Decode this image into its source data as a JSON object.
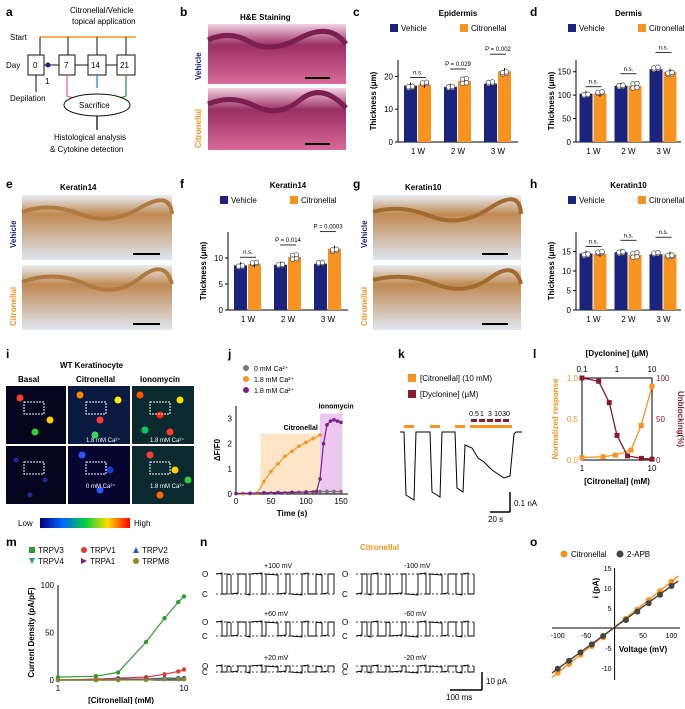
{
  "colors": {
    "vehicle": "#1a237e",
    "citronellal": "#f7931e",
    "wine": "#8b1a2b",
    "green": "#2e9e33",
    "red": "#e53935",
    "blue": "#1e63d6",
    "teal": "#1f9e9e",
    "purple": "#7b1f8a",
    "olive": "#8c8c1a",
    "gray": "#777777"
  },
  "labels": {
    "a": "a",
    "b": "b",
    "c": "c",
    "d": "d",
    "e": "e",
    "f": "f",
    "g": "g",
    "h": "h",
    "i": "i",
    "j": "j",
    "k": "k",
    "l": "l",
    "m": "m",
    "n": "n",
    "o": "o"
  },
  "panel_a": {
    "treatment": "Citronellal/Vehicle",
    "treatment2": "topical application",
    "start": "Start",
    "day": "Day",
    "d0": "0",
    "d1": "1",
    "d7": "7",
    "d14": "14",
    "d21": "21",
    "depilation": "Depilation",
    "sacrifice": "Sacrifice",
    "analysis1": "Histological analysis",
    "analysis2": "& Cytokine detection"
  },
  "panel_b": {
    "title": "H&E Staining",
    "row1": "Vehicle",
    "row2": "Citronellal"
  },
  "panel_e": {
    "title": "Keratin14",
    "row1": "Vehicle",
    "row2": "Citronellal"
  },
  "panel_g": {
    "title": "Keratin10",
    "row1": "Vehicle",
    "row2": "Citronellal"
  },
  "legend_vc": {
    "vehicle": "Vehicle",
    "citronellal": "Citronellal"
  },
  "panel_i": {
    "title": "WT Keratinocyte",
    "col1": "Basal",
    "col2": "Citronellal",
    "col3": "Ionomycin",
    "ca1": "1.8 mM Ca²⁺",
    "ca2": "1.8 mM Ca²⁺",
    "ca0": "0 mM Ca²⁺",
    "ca3": "1.8 mM Ca²⁺",
    "low": "Low",
    "high": "High"
  },
  "panel_j": {
    "leg1": "0 mM Ca²⁺",
    "leg2": "1.8 mM Ca²⁺",
    "leg3": "1.8 mM Ca²⁺",
    "ann1": "Citronellal",
    "ann2": "Ionomycin"
  },
  "panel_k": {
    "leg1": "[Citronellal] (10 mM)",
    "leg2": "[Dyclonine] (μM)",
    "doses": [
      "0.5",
      "1",
      "3",
      "10",
      "30"
    ],
    "scale_y": "0.1 nA",
    "scale_x": "20 s"
  },
  "panel_l": {
    "top_title": "[Dyclonine] (μM)",
    "left_label": "Normalized response",
    "right_label": "Unblocking(%)"
  },
  "panel_n": {
    "title": "Citronellal",
    "v1": "+100 mV",
    "v2": "-100 mV",
    "v3": "+60 mV",
    "v4": "-60 mV",
    "v5": "+20 mV",
    "v6": "-20 mV",
    "o": "O",
    "c": "C",
    "scale_y": "10 pA",
    "scale_x": "100 ms"
  },
  "chart_data": [
    {
      "id": "c",
      "type": "bar",
      "title": "Epidermis",
      "categories": [
        "1 W",
        "2 W",
        "3 W"
      ],
      "series": [
        {
          "name": "Vehicle",
          "values": [
            17.2,
            16.8,
            17.8
          ]
        },
        {
          "name": "Citronellal",
          "values": [
            17.5,
            18.6,
            21.6
          ]
        }
      ],
      "ylabel": "Thickness (μm)",
      "ylim": [
        0,
        25
      ],
      "yticks": [
        0,
        10,
        20
      ],
      "annotations": [
        "n.s.",
        "P = 0.029",
        "P = 0.002"
      ]
    },
    {
      "id": "d",
      "type": "bar",
      "title": "Dermis",
      "categories": [
        "1 W",
        "2 W",
        "3 W"
      ],
      "series": [
        {
          "name": "Vehicle",
          "values": [
            103,
            120,
            155
          ]
        },
        {
          "name": "Citronellal",
          "values": [
            103,
            120,
            150
          ]
        }
      ],
      "ylabel": "Thickness (μm)",
      "ylim": [
        0,
        175
      ],
      "yticks": [
        0,
        50,
        100,
        150
      ],
      "annotations": [
        "n.s.",
        "n.s.",
        "n.s."
      ]
    },
    {
      "id": "f",
      "type": "bar",
      "title": "Keratin14",
      "categories": [
        "1 W",
        "2 W",
        "3 W"
      ],
      "series": [
        {
          "name": "Vehicle",
          "values": [
            8.6,
            8.7,
            8.9
          ]
        },
        {
          "name": "Citronellal",
          "values": [
            8.8,
            10.2,
            11.8
          ]
        }
      ],
      "ylabel": "Thickness (μm)",
      "ylim": [
        0,
        15
      ],
      "yticks": [
        0,
        5,
        10
      ],
      "annotations": [
        "n.s.",
        "P = 0.014",
        "P = 0.0003"
      ]
    },
    {
      "id": "h",
      "type": "bar",
      "title": "Keratin10",
      "categories": [
        "1 W",
        "2 W",
        "3 W"
      ],
      "series": [
        {
          "name": "Vehicle",
          "values": [
            14.5,
            14.8,
            14.3
          ]
        },
        {
          "name": "Citronellal",
          "values": [
            14.4,
            14.1,
            14.2
          ]
        }
      ],
      "ylabel": "Thickness (μm)",
      "ylim": [
        0,
        20
      ],
      "yticks": [
        0,
        5,
        10,
        15
      ],
      "annotations": [
        "n.s.",
        "n.s.",
        "n.s."
      ]
    },
    {
      "id": "j",
      "type": "line",
      "xlabel": "Time (s)",
      "ylabel": "ΔF/F0",
      "xlim": [
        0,
        160
      ],
      "ylim": [
        0,
        3.5
      ],
      "xticks": [
        0,
        50,
        100,
        150
      ],
      "yticks": [
        0,
        1,
        2,
        3
      ],
      "series": [
        {
          "name": "0 mM Ca²⁺",
          "x": [
            0,
            10,
            20,
            30,
            40,
            50,
            60,
            70,
            80,
            90,
            100,
            110,
            120,
            130,
            140,
            150
          ],
          "y": [
            0.02,
            0.02,
            0.02,
            0.03,
            0.03,
            0.04,
            0.05,
            0.05,
            0.06,
            0.07,
            0.08,
            0.09,
            0.1,
            0.1,
            0.1,
            0.1
          ]
        },
        {
          "name": "1.8 mM Ca²⁺",
          "x": [
            0,
            10,
            20,
            30,
            40,
            50,
            60,
            70,
            80,
            90,
            100,
            110,
            120
          ],
          "y": [
            0.02,
            0.02,
            0.02,
            0.03,
            0.5,
            0.9,
            1.2,
            1.5,
            1.7,
            1.9,
            2.05,
            2.2,
            2.35
          ]
        },
        {
          "name": "1.8 mM Ca²⁺",
          "x": [
            0,
            20,
            40,
            60,
            80,
            100,
            115,
            120,
            125,
            130,
            135,
            140,
            145,
            150
          ],
          "y": [
            0.02,
            0.03,
            0.05,
            0.06,
            0.07,
            0.08,
            0.1,
            0.6,
            2.0,
            2.75,
            2.9,
            2.95,
            2.9,
            2.85
          ]
        }
      ]
    },
    {
      "id": "l",
      "type": "line",
      "xlabel": "[Citronellal] (mM)",
      "xlim": [
        1,
        10
      ],
      "xticks": [
        1,
        10
      ],
      "ylim_left": [
        0,
        1.0
      ],
      "yticks_left": [
        0,
        0.5,
        1.0
      ],
      "ylim_right": [
        0,
        100
      ],
      "yticks_right": [
        0,
        50,
        100
      ],
      "top_ticks": [
        0.1,
        1,
        10
      ],
      "series": [
        {
          "name": "Normalized response",
          "x": [
            1,
            2,
            3,
            5,
            7,
            10
          ],
          "y": [
            0.03,
            0.04,
            0.06,
            0.12,
            0.42,
            0.9
          ]
        },
        {
          "name": "Unblocking",
          "x": [
            0.1,
            0.3,
            0.6,
            1,
            2,
            5,
            10
          ],
          "y": [
            100,
            96,
            70,
            30,
            5,
            2,
            1
          ]
        }
      ]
    },
    {
      "id": "m",
      "type": "line",
      "xlabel": "[Citronellal] (mM)",
      "ylabel": "Current Density (pA/pF)",
      "xlim": [
        1,
        10
      ],
      "ylim": [
        0,
        100
      ],
      "xticks": [
        1,
        10
      ],
      "yticks": [
        0,
        50,
        100
      ],
      "series": [
        {
          "name": "TRPV3",
          "x": [
            1,
            2,
            3,
            5,
            7,
            9,
            10
          ],
          "y": [
            3,
            4,
            8,
            40,
            65,
            82,
            88
          ]
        },
        {
          "name": "TRPV1",
          "x": [
            1,
            2,
            3,
            5,
            7,
            9,
            10
          ],
          "y": [
            0,
            1,
            2,
            3,
            6,
            9,
            11
          ]
        },
        {
          "name": "TRPV2",
          "x": [
            1,
            2,
            3,
            5,
            7,
            9,
            10
          ],
          "y": [
            0,
            0,
            1,
            1,
            2,
            2,
            2
          ]
        },
        {
          "name": "TRPV4",
          "x": [
            1,
            2,
            3,
            5,
            7,
            9,
            10
          ],
          "y": [
            0,
            0,
            0,
            1,
            1,
            1,
            1
          ]
        },
        {
          "name": "TRPA1",
          "x": [
            1,
            2,
            3,
            5,
            7,
            9,
            10
          ],
          "y": [
            0,
            0,
            0,
            1,
            1,
            1,
            1
          ]
        },
        {
          "name": "TRPM8",
          "x": [
            1,
            2,
            3,
            5,
            7,
            9,
            10
          ],
          "y": [
            0,
            0,
            0,
            0,
            1,
            1,
            1
          ]
        }
      ]
    },
    {
      "id": "o",
      "type": "scatter",
      "xlabel": "Voltage (mV)",
      "ylabel": "i (pA)",
      "xlim": [
        -110,
        115
      ],
      "ylim": [
        -13,
        15
      ],
      "xticks": [
        -100,
        -50,
        50,
        100
      ],
      "yticks": [
        -10,
        -5,
        5,
        10,
        15
      ],
      "series": [
        {
          "name": "Citronellal",
          "x": [
            -100,
            -80,
            -60,
            -40,
            -20,
            20,
            40,
            60,
            80,
            100
          ],
          "y": [
            -11.2,
            -9,
            -6.7,
            -4.5,
            -2.3,
            2.3,
            4.6,
            7,
            9.2,
            11.6
          ]
        },
        {
          "name": "2-APB",
          "x": [
            -100,
            -80,
            -60,
            -40,
            -20,
            20,
            40,
            60,
            80,
            100
          ],
          "y": [
            -10.2,
            -8.2,
            -6.1,
            -4.1,
            -2.0,
            2.0,
            4.1,
            6.2,
            8.3,
            10.5
          ]
        }
      ]
    }
  ]
}
